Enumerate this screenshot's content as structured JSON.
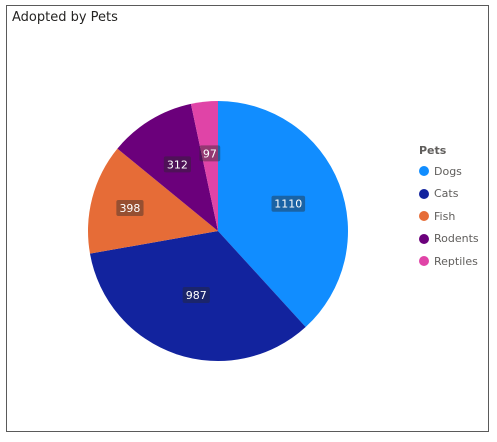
{
  "chart_data": {
    "type": "pie",
    "title": "Adopted by Pets",
    "legend_title": "Pets",
    "legend_position": "right",
    "categories": [
      "Dogs",
      "Cats",
      "Fish",
      "Rodents",
      "Reptiles"
    ],
    "values": [
      1110,
      987,
      398,
      312,
      97
    ],
    "colors": [
      "#118DFF",
      "#12239E",
      "#E66C37",
      "#6B007B",
      "#E044A7"
    ],
    "data_labels": [
      "1110",
      "987",
      "398",
      "312",
      "97"
    ]
  }
}
